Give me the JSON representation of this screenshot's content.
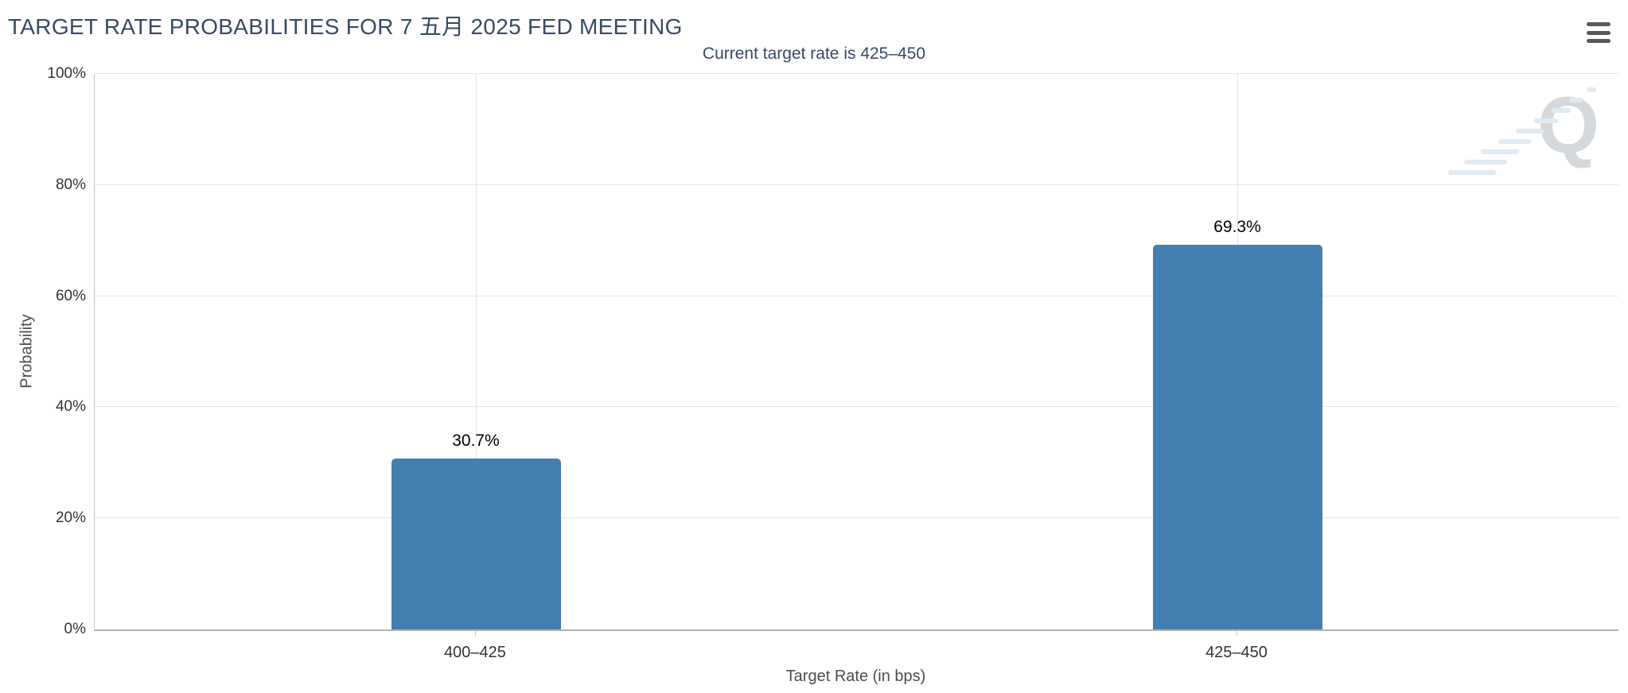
{
  "header": {
    "title": "TARGET RATE PROBABILITIES FOR 7 五月 2025 FED MEETING"
  },
  "menu": {
    "icon": "hamburger-menu-icon"
  },
  "watermark_letter": "Q",
  "colors": {
    "bar": "#437fb0",
    "title_text": "#374a66",
    "subtitle_text": "#374a66",
    "grid": "#e6e6e6",
    "axis_line": "#b2b2b2",
    "tick_label": "#333333",
    "value_label": "#000000",
    "axis_title": "#4d4d4d",
    "menu_icon": "#58595b",
    "watermark": "#d6d9dc"
  },
  "chart_data": {
    "type": "bar",
    "title": "TARGET RATE PROBABILITIES FOR 7 五月 2025 FED MEETING",
    "subtitle": "Current target rate is 425–450",
    "categories": [
      "400–425",
      "425–450"
    ],
    "values": [
      30.7,
      69.3
    ],
    "value_labels": [
      "30.7%",
      "69.3%"
    ],
    "xlabel": "Target Rate (in bps)",
    "ylabel": "Probability",
    "ylim": [
      0,
      100
    ],
    "yticks": [
      0,
      20,
      40,
      60,
      80,
      100
    ],
    "ytick_labels": [
      "0%",
      "20%",
      "40%",
      "60%",
      "80%",
      "100%"
    ],
    "grid": true,
    "legend": false
  }
}
